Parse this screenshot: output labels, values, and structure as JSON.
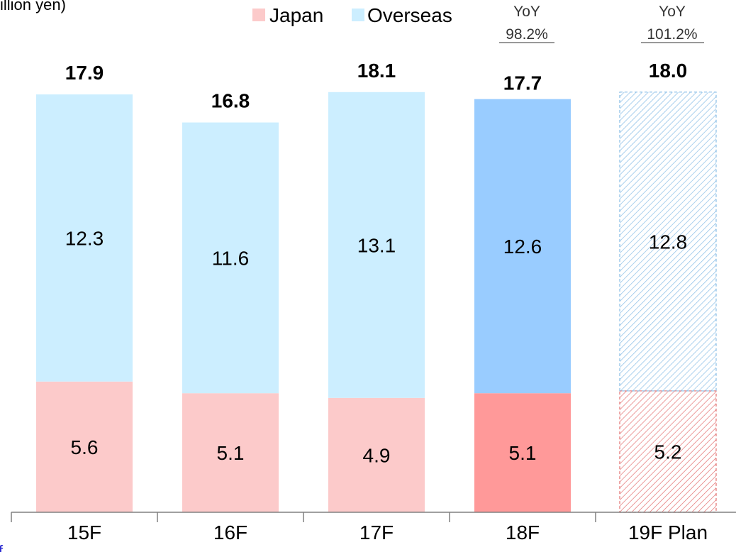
{
  "chart_data": {
    "type": "bar",
    "stacked": true,
    "unit_text": "(Billion yen)",
    "categories": [
      "15F",
      "16F",
      "17F",
      "18F",
      "19F Plan"
    ],
    "series": [
      {
        "name": "Japan",
        "values": [
          5.6,
          5.1,
          4.9,
          5.1,
          5.2
        ],
        "color": "#fccaca",
        "highlight_color": "#ff9999"
      },
      {
        "name": "Overseas",
        "values": [
          12.3,
          11.6,
          13.1,
          12.6,
          12.8
        ],
        "color": "#cceeff",
        "highlight_color": "#99ccff"
      }
    ],
    "totals": [
      "17.9",
      "16.8",
      "18.1",
      "17.7",
      "18.0"
    ],
    "highlight_category": "18F",
    "plan_category": "19F Plan",
    "plan_style": "hatched",
    "yoy": [
      {
        "category": "18F",
        "label": "YoY",
        "value": "98.2%"
      },
      {
        "category": "19F Plan",
        "label": "YoY",
        "value": "101.2%"
      }
    ],
    "ylim": [
      0,
      18.1
    ],
    "legend_position": "top",
    "grid": false,
    "xlabel": "",
    "ylabel": ""
  }
}
